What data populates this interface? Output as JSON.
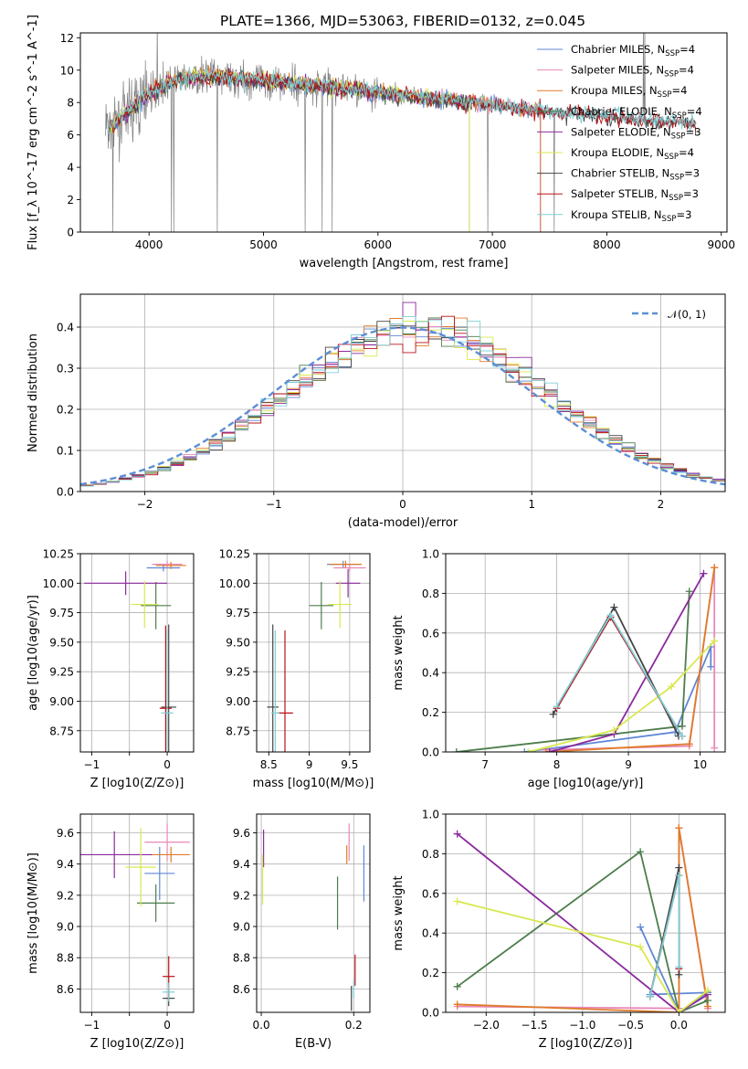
{
  "title": "PLATE=1366, MJD=53063, FIBERID=0132, z=0.045",
  "colors": {
    "chabrier_miles": "#5f87d6",
    "salpeter_miles": "#e887b8",
    "kroupa_miles": "#e07b28",
    "chabrier_elodie": "#4c7d4c",
    "salpeter_elodie": "#8b2a9e",
    "kroupa_elodie": "#d9e84f",
    "chabrier_stelib": "#444444",
    "salpeter_stelib": "#b8131a",
    "kroupa_stelib": "#7fd0d6",
    "data": "#7f7f7f",
    "normal": "#5b8ed6"
  },
  "legend": [
    {
      "name": "Chabrier MILES",
      "n": "4",
      "color_key": "chabrier_miles"
    },
    {
      "name": "Salpeter MILES",
      "n": "4",
      "color_key": "salpeter_miles"
    },
    {
      "name": "Kroupa MILES",
      "n": "4",
      "color_key": "kroupa_miles"
    },
    {
      "name": "Chabrier ELODIE",
      "n": "4",
      "color_key": "chabrier_elodie"
    },
    {
      "name": "Salpeter ELODIE",
      "n": "3",
      "color_key": "salpeter_elodie"
    },
    {
      "name": "Kroupa ELODIE",
      "n": "4",
      "color_key": "kroupa_elodie"
    },
    {
      "name": "Chabrier STELIB",
      "n": "3",
      "color_key": "chabrier_stelib"
    },
    {
      "name": "Salpeter STELIB",
      "n": "3",
      "color_key": "salpeter_stelib"
    },
    {
      "name": "Kroupa STELIB",
      "n": "3",
      "color_key": "kroupa_stelib"
    }
  ],
  "legend_sub": "SSP",
  "hist_legend": "𝒩(0, 1)",
  "chart_data": [
    {
      "id": "spectrum",
      "type": "line",
      "xlabel": "wavelength [Angstrom, rest frame]",
      "ylabel": "Flux [f_λ 10^-17 erg cm^-2 s^-1 A^-1]",
      "xlim": [
        3400,
        9050
      ],
      "ylim": [
        0,
        12.3
      ],
      "xticks": [
        4000,
        5000,
        6000,
        7000,
        8000,
        9000
      ],
      "yticks": [
        0,
        2,
        4,
        6,
        8,
        10,
        12
      ],
      "legend_position": "right",
      "continuum": [
        [
          3600,
          6.3
        ],
        [
          3700,
          6.6
        ],
        [
          3800,
          7.3
        ],
        [
          3900,
          7.9
        ],
        [
          4000,
          8.5
        ],
        [
          4200,
          9.3
        ],
        [
          4500,
          9.6
        ],
        [
          5000,
          9.3
        ],
        [
          5500,
          9.0
        ],
        [
          6000,
          8.6
        ],
        [
          6500,
          8.2
        ],
        [
          7000,
          7.8
        ],
        [
          7500,
          7.4
        ],
        [
          8000,
          7.1
        ],
        [
          8500,
          6.8
        ],
        [
          8780,
          6.7
        ]
      ]
    },
    {
      "id": "residual_hist",
      "type": "histogram",
      "xlabel": "(data-model)/error",
      "ylabel": "Normed distribution",
      "xlim": [
        -2.5,
        2.5
      ],
      "ylim": [
        0,
        0.48
      ],
      "xticks": [
        -2,
        -1,
        0,
        1,
        2
      ],
      "yticks": [
        0.0,
        0.1,
        0.2,
        0.3,
        0.4
      ],
      "legend_position": "top-right",
      "bin_width": 0.1
    },
    {
      "id": "age_vs_z",
      "type": "scatter",
      "xlabel": "Z [log10(Z/Z⊙)]",
      "ylabel": "age [log10(age/yr)]",
      "xlim": [
        -1.15,
        0.35
      ],
      "ylim": [
        8.57,
        10.25
      ],
      "xticks": [
        -1,
        -0.5,
        0
      ],
      "xticklabels": [
        "−1",
        "",
        "0"
      ],
      "yticks": [
        8.75,
        9.0,
        9.25,
        9.5,
        9.75,
        10.0,
        10.25
      ],
      "points": [
        {
          "k": "chabrier_miles",
          "x": -0.05,
          "y": 10.13,
          "xe": 0.22,
          "ye": 0.03
        },
        {
          "k": "salpeter_miles",
          "x": 0.0,
          "y": 10.16,
          "xe": 0.2,
          "ye": 0.03
        },
        {
          "k": "kroupa_miles",
          "x": 0.05,
          "y": 10.15,
          "xe": 0.2,
          "ye": 0.03
        },
        {
          "k": "chabrier_elodie",
          "x": -0.15,
          "y": 9.81,
          "xe": 0.2,
          "ye": 0.2
        },
        {
          "k": "salpeter_elodie",
          "x": -0.55,
          "y": 10.0,
          "xe": 0.55,
          "ye": 0.1
        },
        {
          "k": "kroupa_elodie",
          "x": -0.3,
          "y": 9.82,
          "xe": 0.18,
          "ye": 0.2
        },
        {
          "k": "chabrier_stelib",
          "x": 0.02,
          "y": 8.95,
          "xe": 0.1,
          "ye": 0.7
        },
        {
          "k": "salpeter_stelib",
          "x": -0.02,
          "y": 8.94,
          "xe": 0.08,
          "ye": 0.7
        },
        {
          "k": "kroupa_stelib",
          "x": 0.0,
          "y": 8.9,
          "xe": 0.08,
          "ye": 0.7
        }
      ]
    },
    {
      "id": "age_vs_mass",
      "type": "scatter",
      "xlabel": "mass [log10(M/M⊙)]",
      "ylabel": "",
      "xlim": [
        8.35,
        9.75
      ],
      "ylim": [
        8.57,
        10.25
      ],
      "xticks": [
        8.5,
        9.0,
        9.5
      ],
      "yticks": [
        8.75,
        9.0,
        9.25,
        9.5,
        9.75,
        10.0,
        10.25
      ],
      "points": [
        {
          "k": "chabrier_miles",
          "x": 9.42,
          "y": 10.16,
          "xe": 0.2,
          "ye": 0.03
        },
        {
          "k": "salpeter_miles",
          "x": 9.5,
          "y": 10.13,
          "xe": 0.2,
          "ye": 0.03
        },
        {
          "k": "kroupa_miles",
          "x": 9.45,
          "y": 10.16,
          "xe": 0.2,
          "ye": 0.03
        },
        {
          "k": "chabrier_elodie",
          "x": 9.15,
          "y": 9.81,
          "xe": 0.15,
          "ye": 0.2
        },
        {
          "k": "salpeter_elodie",
          "x": 9.48,
          "y": 10.0,
          "xe": 0.15,
          "ye": 0.12
        },
        {
          "k": "kroupa_elodie",
          "x": 9.38,
          "y": 9.82,
          "xe": 0.15,
          "ye": 0.2
        },
        {
          "k": "chabrier_stelib",
          "x": 8.55,
          "y": 8.95,
          "xe": 0.07,
          "ye": 0.7
        },
        {
          "k": "salpeter_stelib",
          "x": 8.7,
          "y": 8.9,
          "xe": 0.1,
          "ye": 0.7
        },
        {
          "k": "kroupa_stelib",
          "x": 8.58,
          "y": 8.9,
          "xe": 0.05,
          "ye": 0.7
        }
      ]
    },
    {
      "id": "weight_vs_age",
      "type": "line",
      "xlabel": "age [log10(age/yr)]",
      "ylabel": "mass weight",
      "xlim": [
        6.45,
        10.35
      ],
      "ylim": [
        0,
        1.0
      ],
      "xticks": [
        7,
        8,
        9,
        10
      ],
      "yticks": [
        0.0,
        0.2,
        0.4,
        0.6,
        0.8,
        1.0
      ],
      "series": [
        {
          "k": "chabrier_miles",
          "x": [
            7.55,
            9.65,
            10.15,
            10.15
          ],
          "y": [
            0.0,
            0.1,
            0.53,
            0.43
          ]
        },
        {
          "k": "salpeter_miles",
          "x": [
            7.85,
            9.85,
            10.2,
            10.2
          ],
          "y": [
            0.01,
            0.03,
            0.93,
            0.02
          ]
        },
        {
          "k": "kroupa_miles",
          "x": [
            7.85,
            9.85,
            10.2
          ],
          "y": [
            0.0,
            0.04,
            0.93
          ]
        },
        {
          "k": "chabrier_elodie",
          "x": [
            6.6,
            9.75,
            9.85
          ],
          "y": [
            0.0,
            0.13,
            0.81
          ]
        },
        {
          "k": "salpeter_elodie",
          "x": [
            7.9,
            8.8,
            10.05
          ],
          "y": [
            0.0,
            0.09,
            0.9
          ]
        },
        {
          "k": "kroupa_elodie",
          "x": [
            7.6,
            8.8,
            9.6,
            10.2
          ],
          "y": [
            0.0,
            0.11,
            0.33,
            0.56
          ]
        },
        {
          "k": "chabrier_stelib",
          "x": [
            7.95,
            8.8,
            9.7
          ],
          "y": [
            0.19,
            0.73,
            0.08
          ]
        },
        {
          "k": "salpeter_stelib",
          "x": [
            8.0,
            8.75,
            9.75
          ],
          "y": [
            0.22,
            0.68,
            0.08
          ]
        },
        {
          "k": "kroupa_stelib",
          "x": [
            8.0,
            8.75,
            9.75
          ],
          "y": [
            0.23,
            0.69,
            0.08
          ]
        }
      ]
    },
    {
      "id": "mass_vs_z",
      "type": "scatter",
      "xlabel": "Z [log10(Z/Z⊙)]",
      "ylabel": "mass [log10(M/M⊙)]",
      "xlim": [
        -1.15,
        0.35
      ],
      "ylim": [
        8.45,
        9.72
      ],
      "xticks": [
        -1,
        -0.5,
        0
      ],
      "xticklabels": [
        "−1",
        "",
        "0"
      ],
      "yticks": [
        8.6,
        8.8,
        9.0,
        9.2,
        9.4,
        9.6
      ],
      "points": [
        {
          "k": "chabrier_miles",
          "x": -0.1,
          "y": 9.34,
          "xe": 0.2,
          "ye": 0.17
        },
        {
          "k": "salpeter_miles",
          "x": 0.0,
          "y": 9.54,
          "xe": 0.3,
          "ye": 0.12
        },
        {
          "k": "kroupa_miles",
          "x": 0.05,
          "y": 9.46,
          "xe": 0.25,
          "ye": 0.05
        },
        {
          "k": "chabrier_elodie",
          "x": -0.15,
          "y": 9.15,
          "xe": 0.25,
          "ye": 0.12
        },
        {
          "k": "salpeter_elodie",
          "x": -0.7,
          "y": 9.46,
          "xe": 0.5,
          "ye": 0.15
        },
        {
          "k": "kroupa_elodie",
          "x": -0.35,
          "y": 9.38,
          "xe": 0.2,
          "ye": 0.25
        },
        {
          "k": "chabrier_stelib",
          "x": 0.02,
          "y": 8.54,
          "xe": 0.08,
          "ye": 0.05
        },
        {
          "k": "salpeter_stelib",
          "x": 0.02,
          "y": 8.68,
          "xe": 0.08,
          "ye": 0.13
        },
        {
          "k": "kroupa_stelib",
          "x": 0.02,
          "y": 8.58,
          "xe": 0.08,
          "ye": 0.06
        }
      ]
    },
    {
      "id": "mass_vs_ebv",
      "type": "scatter",
      "xlabel": "E(B-V)",
      "ylabel": "",
      "xlim": [
        -0.01,
        0.235
      ],
      "ylim": [
        8.45,
        9.72
      ],
      "xticks": [
        0.0,
        0.2
      ],
      "xticklabels": [
        "0.0",
        "0.2"
      ],
      "yticks": [
        8.6,
        8.8,
        9.0,
        9.2,
        9.4,
        9.6
      ],
      "points": [
        {
          "k": "chabrier_miles",
          "x": 0.222,
          "y": 9.34,
          "xe": 0,
          "ye": 0.18
        },
        {
          "k": "salpeter_miles",
          "x": 0.19,
          "y": 9.54,
          "xe": 0,
          "ye": 0.12
        },
        {
          "k": "kroupa_miles",
          "x": 0.185,
          "y": 9.46,
          "xe": 0,
          "ye": 0.06
        },
        {
          "k": "chabrier_elodie",
          "x": 0.165,
          "y": 9.15,
          "xe": 0,
          "ye": 0.17
        },
        {
          "k": "salpeter_elodie",
          "x": 0.005,
          "y": 9.5,
          "xe": 0,
          "ye": 0.12
        },
        {
          "k": "kroupa_elodie",
          "x": 0.003,
          "y": 9.3,
          "xe": 0,
          "ye": 0.16
        },
        {
          "k": "chabrier_stelib",
          "x": 0.195,
          "y": 8.54,
          "xe": 0,
          "ye": 0.08
        },
        {
          "k": "salpeter_stelib",
          "x": 0.203,
          "y": 8.72,
          "xe": 0,
          "ye": 0.1
        },
        {
          "k": "kroupa_stelib",
          "x": 0.2,
          "y": 8.6,
          "xe": 0,
          "ye": 0.06
        }
      ]
    },
    {
      "id": "weight_vs_z",
      "type": "line",
      "xlabel": "Z [log10(Z/Z⊙)]",
      "ylabel": "mass weight",
      "xlim": [
        -2.42,
        0.48
      ],
      "ylim": [
        0,
        1.0
      ],
      "xticks": [
        -2.0,
        -1.5,
        -1.0,
        -0.5,
        0.0
      ],
      "xticklabels": [
        "−2.0",
        "−1.5",
        "−1.0",
        "−0.5",
        "0.0"
      ],
      "yticks": [
        0.0,
        0.2,
        0.4,
        0.6,
        0.8,
        1.0
      ],
      "series": [
        {
          "k": "chabrier_miles",
          "x": [
            -0.4,
            0.0,
            0.3,
            -0.3
          ],
          "y": [
            0.43,
            0.0,
            0.1,
            0.09
          ]
        },
        {
          "k": "salpeter_miles",
          "x": [
            -2.3,
            0.0,
            0.0,
            0.3
          ],
          "y": [
            0.03,
            0.02,
            0.93,
            0.02
          ]
        },
        {
          "k": "kroupa_miles",
          "x": [
            -2.3,
            0.0,
            0.0,
            0.3
          ],
          "y": [
            0.04,
            0.0,
            0.93,
            0.03
          ]
        },
        {
          "k": "chabrier_elodie",
          "x": [
            -2.3,
            -0.4,
            0.0,
            0.3
          ],
          "y": [
            0.13,
            0.81,
            0.0,
            0.06
          ]
        },
        {
          "k": "salpeter_elodie",
          "x": [
            -2.3,
            0.0,
            0.3
          ],
          "y": [
            0.9,
            0.0,
            0.09
          ]
        },
        {
          "k": "kroupa_elodie",
          "x": [
            -2.3,
            -0.4,
            0.0,
            0.3
          ],
          "y": [
            0.56,
            0.33,
            0.0,
            0.11
          ]
        },
        {
          "k": "chabrier_stelib",
          "x": [
            -0.3,
            0.0,
            0.0
          ],
          "y": [
            0.08,
            0.73,
            0.19
          ]
        },
        {
          "k": "salpeter_stelib",
          "x": [
            -0.3,
            0.0,
            0.0
          ],
          "y": [
            0.08,
            0.69,
            0.22
          ]
        },
        {
          "k": "kroupa_stelib",
          "x": [
            -0.3,
            0.0,
            0.0
          ],
          "y": [
            0.08,
            0.69,
            0.23
          ]
        }
      ]
    }
  ]
}
